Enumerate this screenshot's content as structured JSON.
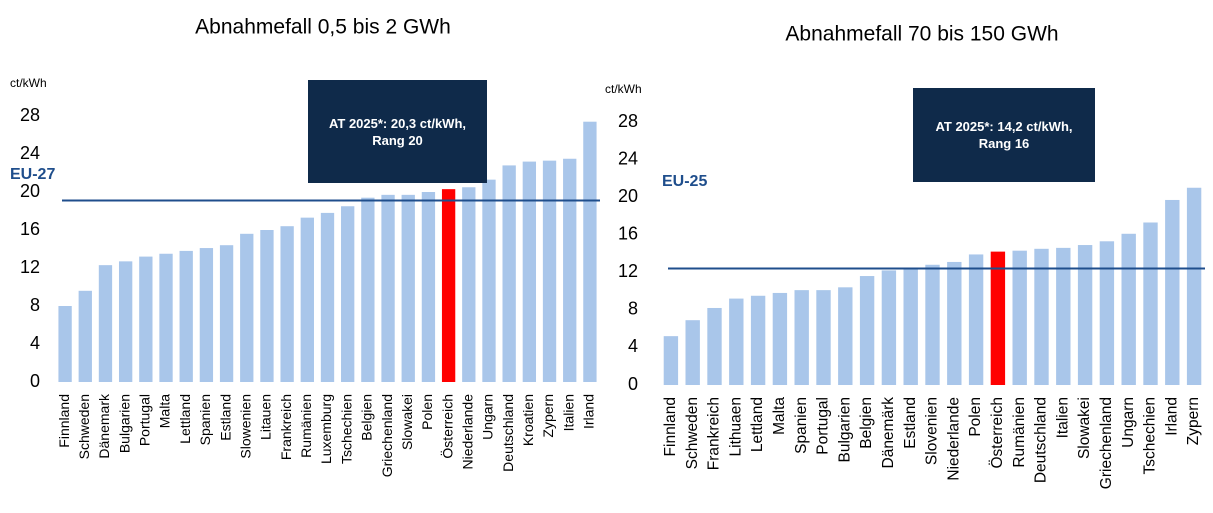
{
  "chart_data": [
    {
      "type": "bar",
      "title": "Abnahmefall 0,5 bis 2 GWh",
      "y_label": "ct/kWh",
      "categories": [
        "Finnland",
        "Schweden",
        "Dänemark",
        "Bulgarien",
        "Portugal",
        "Malta",
        "Lettland",
        "Spanien",
        "Estland",
        "Slowenien",
        "Litauen",
        "Frankreich",
        "Rumänien",
        "Luxemburg",
        "Tschechien",
        "Belgien",
        "Griechenland",
        "Slowakei",
        "Polen",
        "Österreich",
        "Niederlande",
        "Ungarn",
        "Deutschland",
        "Kroatien",
        "Zypern",
        "Italien",
        "Irland"
      ],
      "values": [
        8.0,
        9.6,
        12.3,
        12.7,
        13.2,
        13.5,
        13.8,
        14.1,
        14.4,
        15.6,
        16.0,
        16.4,
        17.3,
        17.8,
        18.5,
        19.4,
        19.7,
        19.7,
        20.0,
        20.3,
        20.5,
        21.3,
        22.8,
        23.2,
        23.3,
        23.5,
        27.4
      ],
      "colors": [
        "#a9c6ea",
        "#a9c6ea",
        "#a9c6ea",
        "#a9c6ea",
        "#a9c6ea",
        "#a9c6ea",
        "#a9c6ea",
        "#a9c6ea",
        "#a9c6ea",
        "#a9c6ea",
        "#a9c6ea",
        "#a9c6ea",
        "#a9c6ea",
        "#a9c6ea",
        "#a9c6ea",
        "#a9c6ea",
        "#a9c6ea",
        "#a9c6ea",
        "#a9c6ea",
        "#ff0000",
        "#a9c6ea",
        "#a9c6ea",
        "#a9c6ea",
        "#a9c6ea",
        "#a9c6ea",
        "#a9c6ea",
        "#a9c6ea"
      ],
      "reference_line": {
        "label": "EU-27",
        "value": 19.1,
        "color": "#1f4e8c"
      },
      "annotation": "AT 2025*: 20,3 ct/kWh, Rang 20",
      "ylim": [
        0,
        28
      ],
      "yticks": [
        0,
        4,
        8,
        12,
        16,
        20,
        24,
        28
      ],
      "grid": false
    },
    {
      "type": "bar",
      "title": "Abnahmefall 70 bis 150 GWh",
      "y_label": "ct/kWh",
      "categories": [
        "Finnland",
        "Schweden",
        "Frankreich",
        "Lithuaen",
        "Lettland",
        "Malta",
        "Spanien",
        "Portugal",
        "Bulgarien",
        "Belgien",
        "Dänemärk",
        "Estland",
        "Slovenien",
        "Niederlande",
        "Polen",
        "Österreich",
        "Rumänien",
        "Deutschland",
        "Italien",
        "Slowakei",
        "Griechenland",
        "Ungarn",
        "Tschechien",
        "Irland",
        "Zypern"
      ],
      "values": [
        5.2,
        6.9,
        8.2,
        9.2,
        9.5,
        9.8,
        10.1,
        10.1,
        10.4,
        11.6,
        12.2,
        12.5,
        12.8,
        13.1,
        13.9,
        14.2,
        14.3,
        14.5,
        14.6,
        14.9,
        15.3,
        16.1,
        17.3,
        19.7,
        21.0
      ],
      "colors": [
        "#a9c6ea",
        "#a9c6ea",
        "#a9c6ea",
        "#a9c6ea",
        "#a9c6ea",
        "#a9c6ea",
        "#a9c6ea",
        "#a9c6ea",
        "#a9c6ea",
        "#a9c6ea",
        "#a9c6ea",
        "#a9c6ea",
        "#a9c6ea",
        "#a9c6ea",
        "#a9c6ea",
        "#ff0000",
        "#a9c6ea",
        "#a9c6ea",
        "#a9c6ea",
        "#a9c6ea",
        "#a9c6ea",
        "#a9c6ea",
        "#a9c6ea",
        "#a9c6ea",
        "#a9c6ea"
      ],
      "reference_line": {
        "label": "EU-25",
        "value": 12.4,
        "color": "#1f4e8c"
      },
      "annotation": "AT 2025*: 14,2 ct/kWh, Rang 16",
      "ylim": [
        0,
        28
      ],
      "yticks": [
        0,
        4,
        8,
        12,
        16,
        20,
        24,
        28
      ],
      "grid": false
    }
  ]
}
